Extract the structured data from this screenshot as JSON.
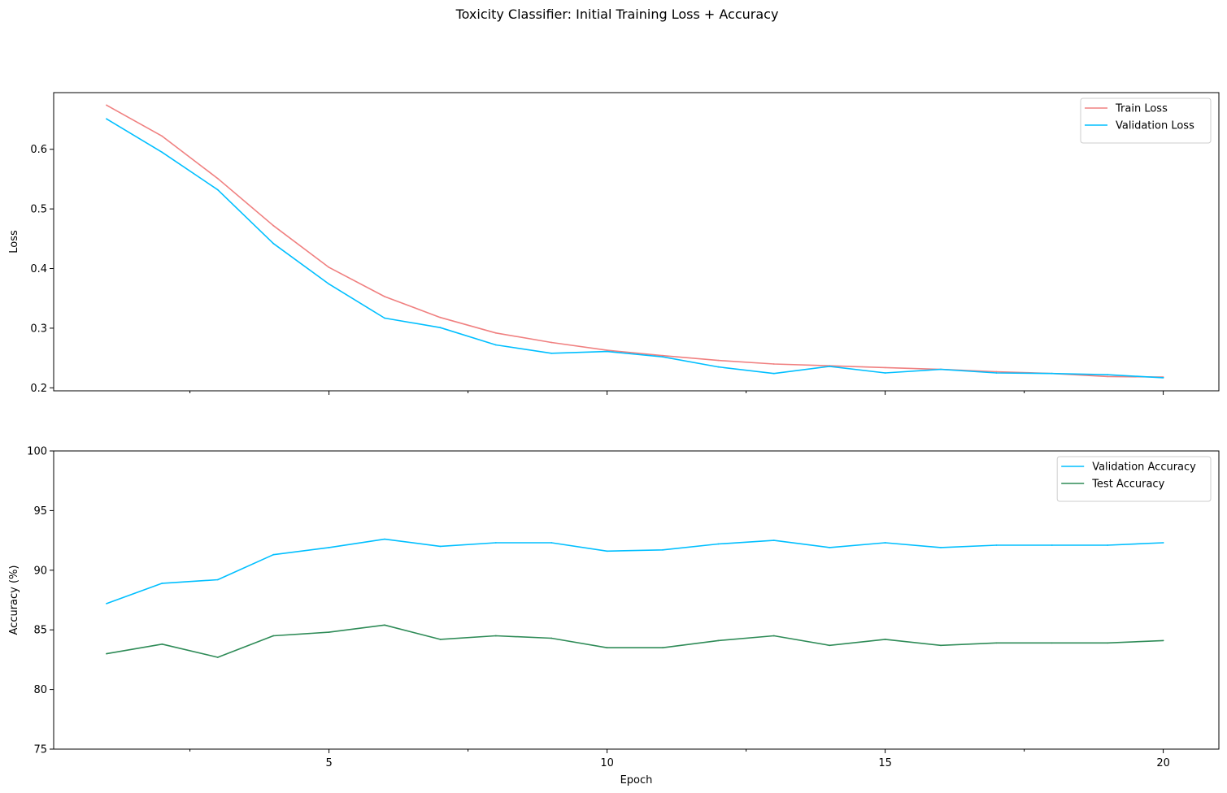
{
  "suptitle": "Toxicity Classifier: Initial Training Loss + Accuracy",
  "chart_data": [
    {
      "type": "line",
      "ylabel": "Loss",
      "xlabel": "",
      "xlim": [
        0.05,
        21.0
      ],
      "ylim": [
        0.195,
        0.695
      ],
      "xticks": [
        5,
        10,
        15,
        20
      ],
      "xminor": [
        2.5,
        7.5,
        12.5,
        17.5
      ],
      "yticks": [
        0.2,
        0.3,
        0.4,
        0.5,
        0.6
      ],
      "ytick_labels": [
        "0.2",
        "0.3",
        "0.4",
        "0.5",
        "0.6"
      ],
      "show_xtick_labels": false,
      "grid": false,
      "legend": "top-right",
      "x": [
        1,
        2,
        3,
        4,
        5,
        6,
        7,
        8,
        9,
        10,
        11,
        12,
        13,
        14,
        15,
        16,
        17,
        18,
        19,
        20
      ],
      "series": [
        {
          "name": "Train Loss",
          "color": "#f08080",
          "values": [
            0.674,
            0.622,
            0.551,
            0.472,
            0.402,
            0.353,
            0.318,
            0.292,
            0.276,
            0.263,
            0.254,
            0.246,
            0.24,
            0.237,
            0.234,
            0.231,
            0.227,
            0.224,
            0.219,
            0.218
          ]
        },
        {
          "name": "Validation Loss",
          "color": "#00bfff",
          "values": [
            0.651,
            0.595,
            0.532,
            0.442,
            0.374,
            0.317,
            0.301,
            0.272,
            0.258,
            0.261,
            0.252,
            0.235,
            0.224,
            0.236,
            0.225,
            0.231,
            0.225,
            0.224,
            0.222,
            0.217
          ]
        }
      ]
    },
    {
      "type": "line",
      "ylabel": "Accuracy (%)",
      "xlabel": "Epoch",
      "xlim": [
        0.05,
        21.0
      ],
      "ylim": [
        75,
        100
      ],
      "xticks": [
        5,
        10,
        15,
        20
      ],
      "xtick_labels": [
        "5",
        "10",
        "15",
        "20"
      ],
      "xminor": [
        2.5,
        7.5,
        12.5,
        17.5
      ],
      "yticks": [
        75,
        80,
        85,
        90,
        95,
        100
      ],
      "ytick_labels": [
        "75",
        "80",
        "85",
        "90",
        "95",
        "100"
      ],
      "show_xtick_labels": true,
      "grid": false,
      "legend": "top-right",
      "x": [
        1,
        2,
        3,
        4,
        5,
        6,
        7,
        8,
        9,
        10,
        11,
        12,
        13,
        14,
        15,
        16,
        17,
        18,
        19,
        20
      ],
      "series": [
        {
          "name": "Validation Accuracy",
          "color": "#00bfff",
          "values": [
            87.2,
            88.9,
            89.2,
            91.3,
            91.9,
            92.6,
            92.0,
            92.3,
            92.3,
            91.6,
            91.7,
            92.2,
            92.5,
            91.9,
            92.3,
            91.9,
            92.1,
            92.1,
            92.1,
            92.3
          ]
        },
        {
          "name": "Test Accuracy",
          "color": "#2e8b57",
          "values": [
            83.0,
            83.8,
            82.7,
            84.5,
            84.8,
            85.4,
            84.2,
            84.5,
            84.3,
            83.5,
            83.5,
            84.1,
            84.5,
            83.7,
            84.2,
            83.7,
            83.9,
            83.9,
            83.9,
            84.1
          ]
        }
      ]
    }
  ]
}
